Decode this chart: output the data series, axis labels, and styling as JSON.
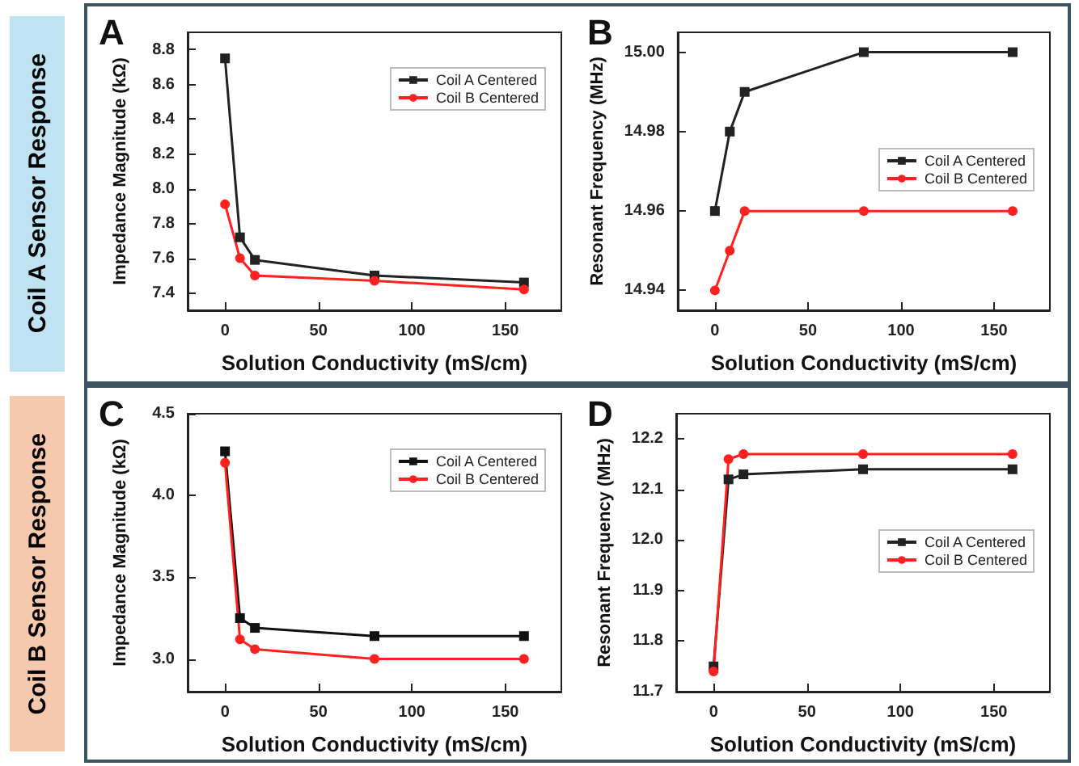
{
  "chart_data": [
    {
      "type": "line",
      "title": "A",
      "annotations": [
        "Coil A Sensor Response"
      ],
      "xlabel": "Solution Conductivity (mS/cm)",
      "ylabel": "Impedance Magnitude (kΩ)",
      "x": [
        0,
        8,
        16,
        80,
        160
      ],
      "xlim": [
        -20,
        180
      ],
      "xticks": [
        0,
        50,
        100,
        150
      ],
      "ylim": [
        7.3,
        8.9
      ],
      "yticks": [
        7.4,
        7.6,
        7.8,
        {
          "value": 8.0,
          "label": "8.0"
        },
        8.2,
        8.4,
        8.6,
        8.8
      ],
      "grid": false,
      "legend": "top right",
      "series": [
        {
          "name": "Coil A Centered",
          "color": "#222222",
          "marker": "square",
          "values": [
            8.75,
            7.72,
            7.59,
            7.5,
            7.46
          ]
        },
        {
          "name": "Coil B Centered",
          "color": "#ff2020",
          "marker": "circle",
          "values": [
            7.91,
            7.6,
            7.5,
            7.47,
            7.42
          ]
        }
      ]
    },
    {
      "type": "line",
      "title": "B",
      "xlabel": "Solution Conductivity (mS/cm)",
      "ylabel": "Resonant Frequency (MHz)",
      "x": [
        0,
        8,
        16,
        80,
        160
      ],
      "xlim": [
        -20,
        180
      ],
      "xticks": [
        0,
        50,
        100,
        150
      ],
      "ylim": [
        14.935,
        15.005
      ],
      "yticks": [
        {
          "value": 14.94,
          "label": "14.94"
        },
        {
          "value": 14.96,
          "label": "14.96"
        },
        {
          "value": 14.98,
          "label": "14.98"
        },
        {
          "value": 15.0,
          "label": "15.00"
        }
      ],
      "grid": false,
      "legend": "right",
      "series": [
        {
          "name": "Coil A Centered",
          "color": "#222222",
          "marker": "square",
          "values": [
            14.96,
            14.98,
            14.99,
            15.0,
            15.0
          ]
        },
        {
          "name": "Coil B Centered",
          "color": "#ff2020",
          "marker": "circle",
          "values": [
            14.94,
            14.95,
            14.96,
            14.96,
            14.96
          ]
        }
      ]
    },
    {
      "type": "line",
      "title": "C",
      "annotations": [
        "Coil B Sensor Response"
      ],
      "xlabel": "Solution Conductivity (mS/cm)",
      "ylabel": "Impedance Magnitude (kΩ)",
      "x": [
        0,
        8,
        16,
        80,
        160
      ],
      "xlim": [
        -20,
        180
      ],
      "xticks": [
        0,
        50,
        100,
        150
      ],
      "ylim": [
        2.8,
        4.5
      ],
      "yticks": [
        {
          "value": 3.0,
          "label": "3.0"
        },
        {
          "value": 3.5,
          "label": "3.5"
        },
        {
          "value": 4.0,
          "label": "4.0"
        },
        {
          "value": 4.5,
          "label": "4.5"
        }
      ],
      "grid": false,
      "legend": "top right",
      "series": [
        {
          "name": "Coil A Centered",
          "color": "#111111",
          "marker": "square",
          "values": [
            4.27,
            3.25,
            3.19,
            3.14,
            3.14
          ]
        },
        {
          "name": "Coil B Centered",
          "color": "#ff2020",
          "marker": "circle",
          "values": [
            4.2,
            3.12,
            3.06,
            3.0,
            3.0
          ]
        }
      ]
    },
    {
      "type": "line",
      "title": "D",
      "xlabel": "Solution Conductivity (mS/cm)",
      "ylabel": "Resonant Frequency (MHz)",
      "x": [
        0,
        8,
        16,
        80,
        160
      ],
      "xlim": [
        -20,
        180
      ],
      "xticks": [
        0,
        50,
        100,
        150
      ],
      "ylim": [
        11.7,
        12.25
      ],
      "yticks": [
        {
          "value": 11.7,
          "label": "11.7"
        },
        {
          "value": 11.8,
          "label": "11.8"
        },
        {
          "value": 11.9,
          "label": "11.9"
        },
        {
          "value": 12.0,
          "label": "12.0"
        },
        {
          "value": 12.1,
          "label": "12.1"
        },
        {
          "value": 12.2,
          "label": "12.2"
        }
      ],
      "grid": false,
      "legend": "right",
      "series": [
        {
          "name": "Coil A Centered",
          "color": "#222222",
          "marker": "square",
          "values": [
            11.75,
            12.12,
            12.13,
            12.14,
            12.14
          ]
        },
        {
          "name": "Coil B Centered",
          "color": "#ff2020",
          "marker": "circle",
          "values": [
            11.74,
            12.16,
            12.17,
            12.17,
            12.17
          ]
        }
      ]
    }
  ]
}
